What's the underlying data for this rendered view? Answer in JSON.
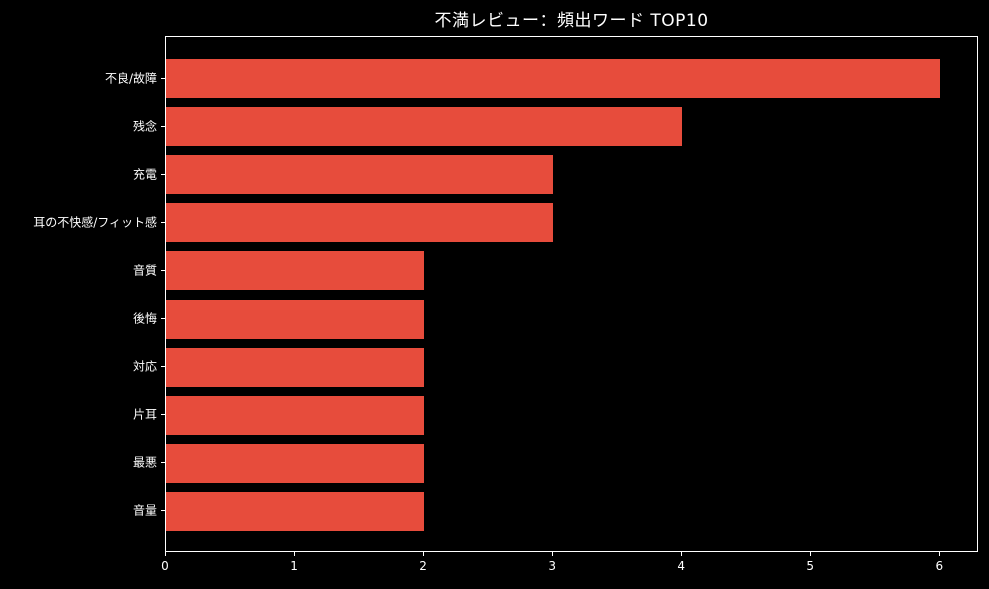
{
  "title": "不満レビュー：頻出ワード TOP10",
  "colors": {
    "background": "#000000",
    "bar": "#e74c3c",
    "text": "#ffffff",
    "axis": "#ffffff"
  },
  "chart_data": {
    "type": "bar",
    "orientation": "horizontal",
    "title": "不満レビュー：頻出ワード TOP10",
    "categories": [
      "不良/故障",
      "残念",
      "充電",
      "耳の不快感/フィット感",
      "音質",
      "後悔",
      "対応",
      "片耳",
      "最悪",
      "音量"
    ],
    "values": [
      6,
      4,
      3,
      3,
      2,
      2,
      2,
      2,
      2,
      2
    ],
    "xlabel": "",
    "ylabel": "",
    "xlim": [
      0,
      6.3
    ],
    "xticks": [
      0,
      1,
      2,
      3,
      4,
      5,
      6
    ],
    "grid": false,
    "legend": null,
    "background": "dark"
  }
}
